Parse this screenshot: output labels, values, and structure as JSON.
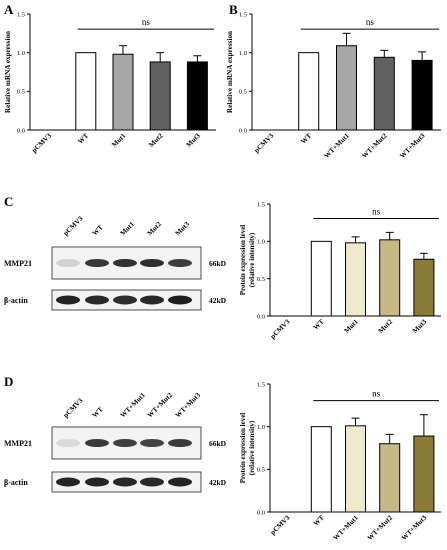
{
  "panels": [
    {
      "letter": "A"
    },
    {
      "letter": "B"
    },
    {
      "letter": "C"
    },
    {
      "letter": "D"
    }
  ],
  "blots": [
    {
      "panel": "C",
      "lanes": [
        "pCMV3",
        "WT",
        "Mut1",
        "Mut2",
        "Mut3"
      ],
      "rows": [
        {
          "protein": "MMP21",
          "size": "66kD",
          "intensity": [
            0.12,
            0.85,
            0.88,
            0.9,
            0.83
          ]
        },
        {
          "protein": "β-actin",
          "size": "42kD",
          "intensity": [
            0.95,
            0.92,
            0.9,
            0.93,
            0.97
          ]
        }
      ]
    },
    {
      "panel": "D",
      "lanes": [
        "pCMV3",
        "WT",
        "WT+Mut1",
        "WT+Mut2",
        "WT+Mut3"
      ],
      "rows": [
        {
          "protein": "MMP21",
          "size": "66kD",
          "intensity": [
            0.08,
            0.85,
            0.82,
            0.8,
            0.84
          ]
        },
        {
          "protein": "β-actin",
          "size": "42kD",
          "intensity": [
            0.95,
            0.95,
            0.93,
            0.92,
            0.95
          ]
        }
      ]
    }
  ],
  "chart_data": [
    {
      "panel": "A",
      "type": "bar",
      "categories": [
        "pCMV3",
        "WT",
        "Mut1",
        "Mut2",
        "Mut3"
      ],
      "values": [
        0,
        1.0,
        0.98,
        0.88,
        0.88
      ],
      "errors": [
        0,
        0,
        0.11,
        0.12,
        0.08
      ],
      "colors": [
        "#ffffff",
        "#ffffff",
        "#a6a6a6",
        "#606060",
        "#000000"
      ],
      "ylabel": "Relative mRNA expression",
      "ylim": [
        0,
        1.5
      ],
      "yticks": [
        "0.0",
        "0.5",
        "1.0",
        "1.5"
      ],
      "annotation": "ns",
      "grid": false
    },
    {
      "panel": "B",
      "type": "bar",
      "categories": [
        "pCMV3",
        "WT",
        "WT+Mut1",
        "WT+Mut2",
        "WT+Mut3"
      ],
      "values": [
        0,
        1.0,
        1.09,
        0.94,
        0.9
      ],
      "errors": [
        0,
        0,
        0.16,
        0.09,
        0.11
      ],
      "colors": [
        "#ffffff",
        "#ffffff",
        "#a6a6a6",
        "#606060",
        "#000000"
      ],
      "ylabel": "Relative mRNA expression",
      "ylim": [
        0,
        1.5
      ],
      "yticks": [
        "0.0",
        "0.5",
        "1.0",
        "1.5"
      ],
      "annotation": "ns",
      "grid": false
    },
    {
      "panel": "C",
      "type": "bar",
      "categories": [
        "pCMV3",
        "WT",
        "Mut1",
        "Mut2",
        "Mut3"
      ],
      "values": [
        0,
        1.0,
        0.98,
        1.02,
        0.76
      ],
      "errors": [
        0,
        0,
        0.08,
        0.1,
        0.08
      ],
      "colors": [
        "#ffffff",
        "#ffffff",
        "#eee8cc",
        "#c8b886",
        "#8b7a3a"
      ],
      "ylabel": [
        "Protein expression level",
        "(relative intensity)"
      ],
      "ylim": [
        0,
        1.5
      ],
      "yticks": [
        "0.0",
        "0.5",
        "1.0",
        "1.5"
      ],
      "annotation": "ns",
      "grid": false
    },
    {
      "panel": "D",
      "type": "bar",
      "categories": [
        "pCMV3",
        "WT",
        "WT+Mut1",
        "WT+Mut2",
        "WT+Mut3"
      ],
      "values": [
        0,
        1.0,
        1.01,
        0.8,
        0.89
      ],
      "errors": [
        0,
        0,
        0.09,
        0.11,
        0.25
      ],
      "colors": [
        "#ffffff",
        "#ffffff",
        "#eee8cc",
        "#c8b886",
        "#8b7a3a"
      ],
      "ylabel": [
        "Protein expression level",
        "(relative intensity)"
      ],
      "ylim": [
        0,
        1.5
      ],
      "yticks": [
        "0.0",
        "0.5",
        "1.0",
        "1.5"
      ],
      "annotation": "ns",
      "grid": false
    }
  ]
}
